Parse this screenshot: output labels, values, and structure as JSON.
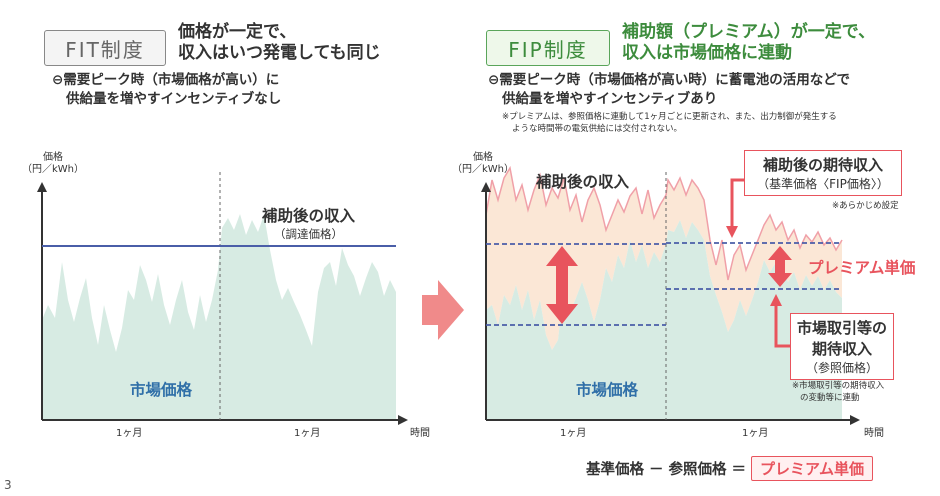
{
  "fit": {
    "badge": "FIT制度",
    "heading_line1": "価格が一定で、",
    "heading_line2": "収入はいつ発電しても同じ",
    "sub_line1": "⊖需要ピーク時（市場価格が高い）に",
    "sub_line2": "供給量を増やすインセンティブなし",
    "y_axis_label1": "価格",
    "y_axis_label2": "（円／kWh）",
    "line_label1": "補助後の収入",
    "line_label2": "（調達価格）",
    "market_label": "市場価格",
    "month1": "1ヶ月",
    "month2": "1ヶ月",
    "x_axis_label": "時間"
  },
  "fip": {
    "badge": "FIP制度",
    "heading_line1": "補助額（プレミアム）が一定で、",
    "heading_line2": "収入は市場価格に連動",
    "sub_line1": "⊖需要ピーク時（市場価格が高い時）に蓄電池の活用などで",
    "sub_line2": "供給量を増やすインセンティブあり",
    "note_line1": "※プレミアムは、参照価格に連動して1ヶ月ごとに更新され、また、出力制御が発生する",
    "note_line2": "ような時間帯の電気供給には交付されない。",
    "y_axis_label1": "価格",
    "y_axis_label2": "（円／kWh）",
    "income_label": "補助後の収入",
    "expected_box_line1": "補助後の期待収入",
    "expected_box_line2": "（基準価格〈FIP価格〉）",
    "preset_note": "※あらかじめ設定",
    "premium_label": "プレミアム単価",
    "market_box_line1": "市場取引等の",
    "market_box_line2": "期待収入",
    "market_box_line3": "（参照価格）",
    "market_note_line1": "※市場取引等の期待収入",
    "market_note_line2": "の変動等に連動",
    "market_label": "市場価格",
    "month1": "1ヶ月",
    "month2": "1ヶ月",
    "x_axis_label": "時間"
  },
  "formula": {
    "part1": "基準価格",
    "minus": "－",
    "part2": "参照価格",
    "equals": "＝",
    "result": "プレミアム単価"
  },
  "page_number": "3",
  "colors": {
    "market_fill": "#d7ebe3",
    "premium_fill": "#fbe7d6",
    "fit_line": "#4a5ea8",
    "dashed_line": "#4a5ea8",
    "accent_red": "#e8545d",
    "arrow_pink": "#f08a8a",
    "fip_green": "#3d8c3d"
  }
}
